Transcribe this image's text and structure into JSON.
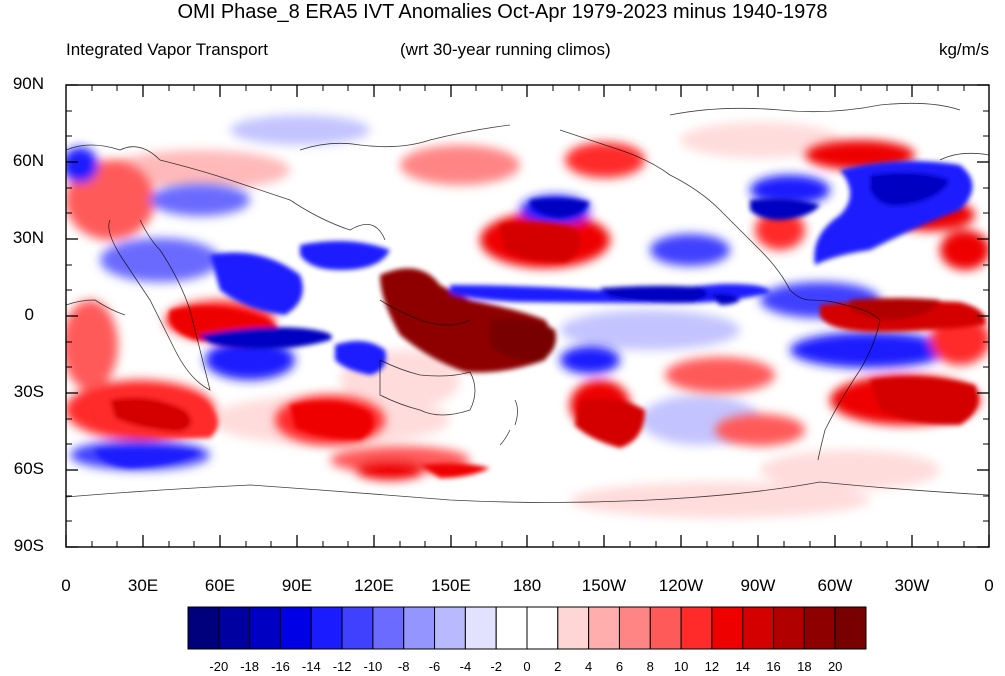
{
  "title": "OMI Phase_8 ERA5 IVT Anomalies Oct-Apr 1979-2023 minus 1940-1978",
  "subtitle_left": "Integrated Vapor Transport",
  "subtitle_center": "(wrt 30-year running climos)",
  "subtitle_right": "kg/m/s",
  "y_ticks": [
    "90N",
    "60N",
    "30N",
    "0",
    "30S",
    "60S",
    "90S"
  ],
  "x_ticks": [
    "0",
    "30E",
    "60E",
    "90E",
    "120E",
    "150E",
    "180",
    "150W",
    "120W",
    "90W",
    "60W",
    "30W",
    "0"
  ],
  "colorbar": {
    "labels": [
      "-20",
      "-18",
      "-16",
      "-14",
      "-12",
      "-10",
      "-8",
      "-6",
      "-4",
      "-2",
      "0",
      "2",
      "4",
      "6",
      "8",
      "10",
      "12",
      "14",
      "16",
      "18",
      "20"
    ],
    "colors": [
      "#00007d",
      "#0000a0",
      "#0000c2",
      "#0000e6",
      "#1b1bff",
      "#4040ff",
      "#6b6bff",
      "#9595ff",
      "#b9b9ff",
      "#e2e2ff",
      "#ffffff",
      "#ffffff",
      "#ffd6d6",
      "#ffadad",
      "#ff8585",
      "#ff5a5a",
      "#ff2a2a",
      "#ef0000",
      "#d40000",
      "#b00000",
      "#8e0000",
      "#780000"
    ]
  },
  "palette": {
    "deep_red": "#8e0000",
    "red": "#ef0000",
    "light_red": "#ffadad",
    "deep_blue": "#0000c2",
    "blue": "#1b1bff",
    "light_blue": "#b9b9ff"
  }
}
